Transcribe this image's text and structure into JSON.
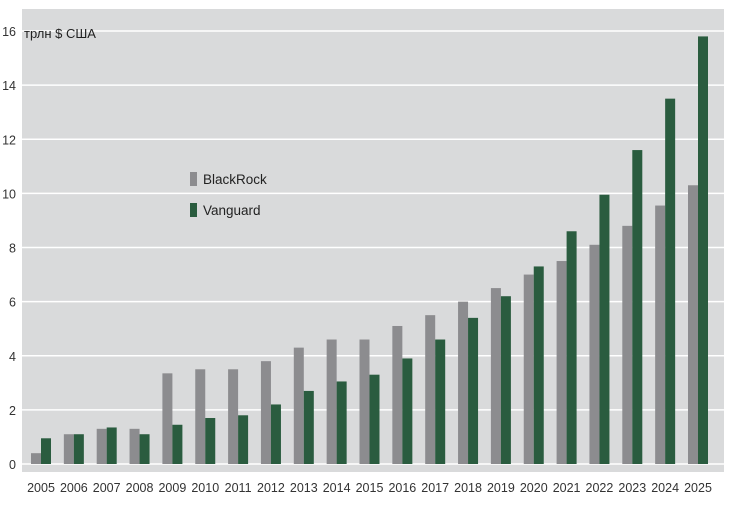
{
  "chart_data": {
    "type": "bar",
    "ylabel": "трлн $ США",
    "categories": [
      "2005",
      "2006",
      "2007",
      "2008",
      "2009",
      "2010",
      "2011",
      "2012",
      "2013",
      "2014",
      "2015",
      "2016",
      "2017",
      "2018",
      "2019",
      "2020",
      "2021",
      "2022",
      "2023",
      "2024",
      "2025"
    ],
    "series": [
      {
        "name": "BlackRock",
        "color": "#8c8c8f",
        "values": [
          0.4,
          1.1,
          1.3,
          1.3,
          3.35,
          3.5,
          3.5,
          3.8,
          4.3,
          4.6,
          4.6,
          5.1,
          5.5,
          6.0,
          6.5,
          7.0,
          7.5,
          8.1,
          8.8,
          9.55,
          10.3
        ]
      },
      {
        "name": "Vanguard",
        "color": "#2a5c3f",
        "values": [
          0.95,
          1.1,
          1.35,
          1.1,
          1.45,
          1.7,
          1.8,
          2.2,
          2.7,
          3.05,
          3.3,
          3.9,
          4.6,
          5.4,
          6.2,
          7.3,
          8.6,
          9.95,
          11.6,
          13.5,
          15.8
        ]
      }
    ],
    "ylim": [
      0,
      16
    ],
    "yticks": [
      0,
      2,
      4,
      6,
      8,
      10,
      12,
      14,
      16
    ],
    "grid": true,
    "legend": "upper-left-middle",
    "background": "#d9dadb"
  }
}
